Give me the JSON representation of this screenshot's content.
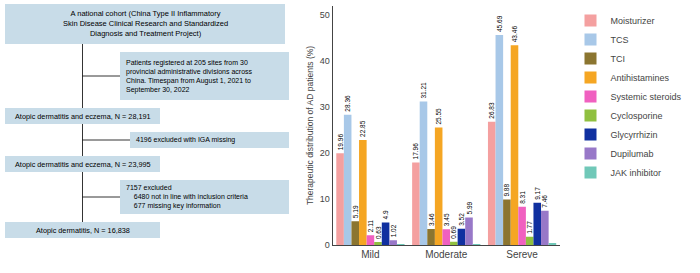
{
  "chart_data": [
    {
      "type": "flowchart",
      "annotations": [
        "A national cohort (China Type II Inflammatory\nSkin Disease Clinical Research and Standardized\nDiagnosis and Treatment Project)",
        "Patients registered at 205 sites from 30\nprovincial administrative divisions across\nChina. Timespan from August 1, 2021 to\nSeptember 30, 2022",
        "Atopic dermatitis and eczema, N = 28,191",
        "4196 excluded with IGA missing",
        "Atopic dermatitis and eczema, N = 23,995",
        "7157 excluded\n    6480 not in line with inclusion criteria\n    677 missing key information",
        "Atopic dermatitis, N = 16,838"
      ],
      "color": "#C8DCE8"
    },
    {
      "type": "bar",
      "categories": [
        "Mild",
        "Moderate",
        "Sereve"
      ],
      "series": [
        {
          "name": "Moisturizer",
          "color": "#F4A0A0",
          "values": [
            19.96,
            17.96,
            26.83
          ]
        },
        {
          "name": "TCS",
          "color": "#A8C8E8",
          "values": [
            28.36,
            31.21,
            45.69
          ]
        },
        {
          "name": "TCI",
          "color": "#8B7530",
          "values": [
            5.19,
            3.46,
            9.88
          ]
        },
        {
          "name": "Antihistamines",
          "color": "#F5A623",
          "values": [
            22.85,
            25.55,
            43.46
          ]
        },
        {
          "name": "Systemic steroids",
          "color": "#F060C0",
          "values": [
            2.11,
            3.45,
            8.31
          ]
        },
        {
          "name": "Cyclosporine",
          "color": "#90C040",
          "values": [
            0.63,
            0.69,
            1.77
          ]
        },
        {
          "name": "Glycyrrhizin",
          "color": "#1030A0",
          "values": [
            4.9,
            3.52,
            9.17
          ]
        },
        {
          "name": "Dupilumab",
          "color": "#9878C8",
          "values": [
            1.02,
            5.99,
            7.46
          ]
        },
        {
          "name": "JAK inhibitor",
          "color": "#70C8B8",
          "values": [
            0.07,
            0.1,
            0.27
          ],
          "value_labels": [
            null,
            null,
            null
          ]
        }
      ],
      "ylabel": "Therapeutic distribution of AD patients (%)",
      "ylim": [
        0,
        52
      ],
      "yticks": [
        0,
        10,
        20,
        30,
        40,
        50
      ],
      "grid": false,
      "legend": "right",
      "data_labels": true
    }
  ]
}
